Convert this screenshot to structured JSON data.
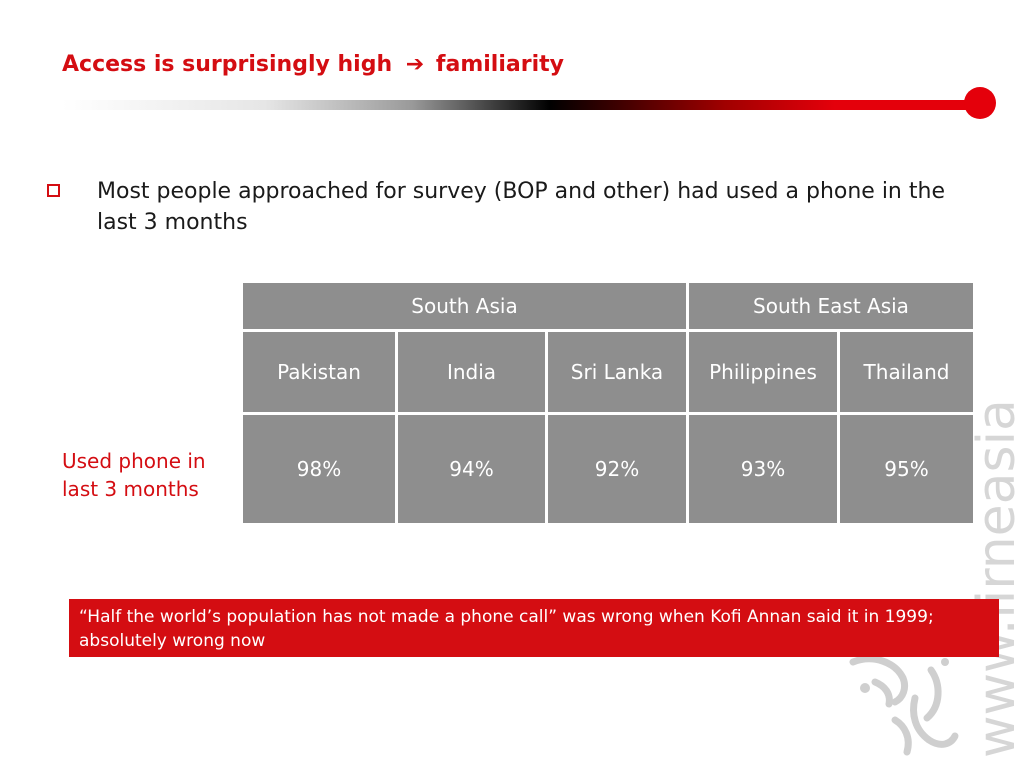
{
  "slide": {
    "title_left": "Access is surprisingly high",
    "title_arrow": "➔",
    "title_right": "familiarity",
    "bullet": "Most people approached for survey (BOP and other) had used a phone in the last 3 months",
    "row_label": "Used phone in last 3 months",
    "quote": "“Half the world’s population has not made a phone call” was wrong when Kofi Annan said it in 1999; absolutely wrong now",
    "watermark": "www.lirneasia.net"
  },
  "table": {
    "regions": [
      "South Asia",
      "South East Asia"
    ],
    "countries": [
      "Pakistan",
      "India",
      "Sri Lanka",
      "Philippines",
      "Thailand"
    ],
    "values": [
      "98%",
      "94%",
      "92%",
      "93%",
      "95%"
    ]
  },
  "colors": {
    "accent": "#d40d12",
    "cell": "#8e8e8e"
  },
  "icons": {
    "bullet": "square-outline-icon",
    "logo": "stylized-figure-logo"
  }
}
